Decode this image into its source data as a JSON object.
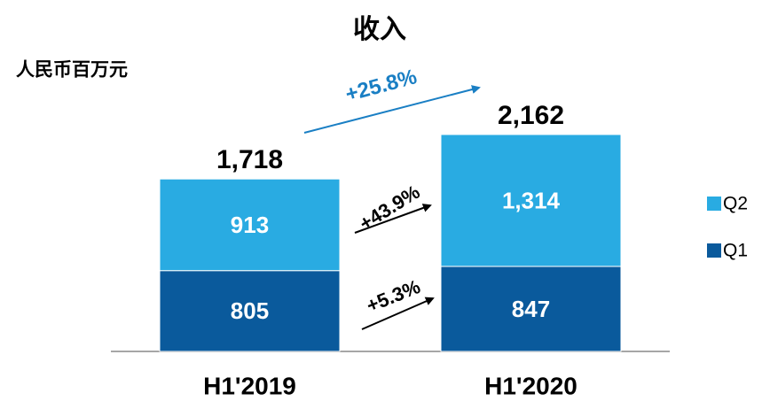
{
  "chart_data": {
    "type": "stacked_bar",
    "title": "收入",
    "subtitle": "人民币百万元",
    "categories": [
      "H1'2019",
      "H1'2020"
    ],
    "series": [
      {
        "name": "Q1",
        "color": "#0a5a9c",
        "values": [
          805,
          847
        ],
        "value_labels": [
          "805",
          "847"
        ]
      },
      {
        "name": "Q2",
        "color": "#29abe2",
        "values": [
          913,
          1314
        ],
        "value_labels": [
          "913",
          "1,314"
        ]
      }
    ],
    "totals": [
      1718,
      2162
    ],
    "total_labels": [
      "1,718",
      "2,162"
    ],
    "annotations": [
      "+25.8%",
      "+43.9%",
      "+5.3%"
    ],
    "ylim": [
      0,
      2500
    ]
  }
}
